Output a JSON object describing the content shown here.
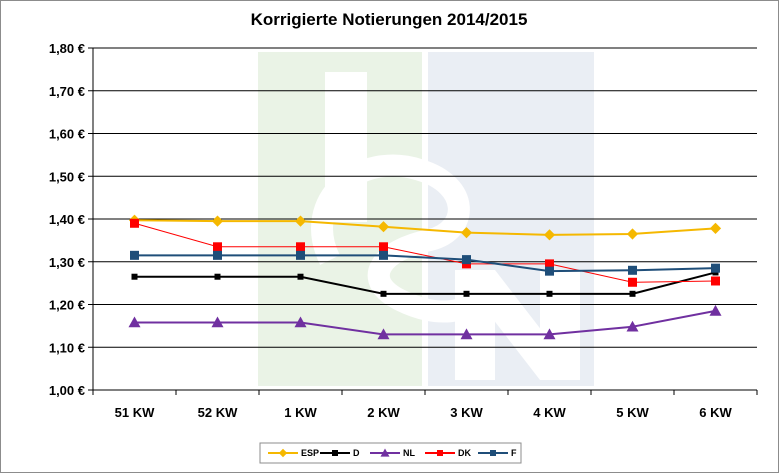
{
  "chart_data": {
    "type": "line",
    "title": "Korrigierte Notierungen 2014/2015",
    "xlabel": "",
    "ylabel": "",
    "categories": [
      "51 KW",
      "52 KW",
      "1 KW",
      "2 KW",
      "3 KW",
      "4 KW",
      "5 KW",
      "6 KW"
    ],
    "y_ticks": [
      "1,00 €",
      "1,10 €",
      "1,20 €",
      "1,30 €",
      "1,40 €",
      "1,50 €",
      "1,60 €",
      "1,70 €",
      "1,80 €"
    ],
    "ylim": [
      1.0,
      1.8
    ],
    "grid": true,
    "legend_position": "bottom",
    "watermark": "ISN",
    "series": [
      {
        "name": "ESP",
        "color": "#f5b800",
        "marker": "diamond",
        "values": [
          1.397,
          1.395,
          1.395,
          1.382,
          1.368,
          1.363,
          1.365,
          1.378
        ]
      },
      {
        "name": "D",
        "color": "#000000",
        "marker": "square",
        "values": [
          1.265,
          1.265,
          1.265,
          1.225,
          1.225,
          1.225,
          1.225,
          1.275
        ]
      },
      {
        "name": "NL",
        "color": "#7030a0",
        "marker": "triangle",
        "values": [
          1.158,
          1.158,
          1.158,
          1.13,
          1.13,
          1.13,
          1.148,
          1.185
        ]
      },
      {
        "name": "DK",
        "color": "#ff0000",
        "marker": "square",
        "values": [
          1.39,
          1.335,
          1.335,
          1.335,
          1.295,
          1.295,
          1.252,
          1.255
        ]
      },
      {
        "name": "F",
        "color": "#1f4e79",
        "marker": "square",
        "values": [
          1.315,
          1.315,
          1.315,
          1.315,
          1.305,
          1.278,
          1.28,
          1.285
        ]
      }
    ]
  }
}
